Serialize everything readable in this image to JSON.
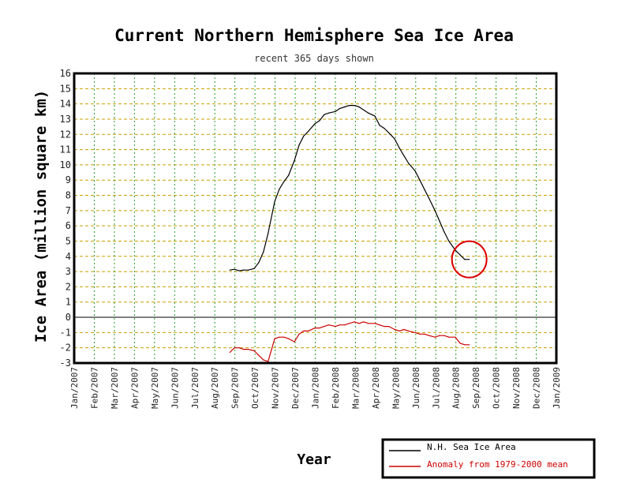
{
  "chart_data": {
    "type": "line",
    "title": "Current Northern Hemisphere Sea Ice Area",
    "subtitle": "recent 365 days shown",
    "ylabel": "Ice Area (million square km)",
    "xlabel": "Year",
    "ylim": [
      -3,
      16
    ],
    "yticks": [
      -3,
      -2,
      -1,
      0,
      1,
      2,
      3,
      4,
      5,
      6,
      7,
      8,
      9,
      10,
      11,
      12,
      13,
      14,
      15,
      16
    ],
    "xticks": [
      "Jan/2007",
      "Feb/2007",
      "Mar/2007",
      "Apr/2007",
      "May/2007",
      "Jun/2007",
      "Jul/2007",
      "Aug/2007",
      "Sep/2007",
      "Oct/2007",
      "Nov/2007",
      "Dec/2007",
      "Jan/2008",
      "Feb/2008",
      "Mar/2008",
      "Apr/2008",
      "May/2008",
      "Jun/2008",
      "Jul/2008",
      "Aug/2008",
      "Sep/2008",
      "Oct/2008",
      "Nov/2008",
      "Dec/2008",
      "Jan/2009"
    ],
    "xlim": [
      "2007-01-01",
      "2009-01-01"
    ],
    "grid": true,
    "legend_position": "bottom-right",
    "series": [
      {
        "name": "N.H. Sea Ice Area",
        "color": "#000000",
        "x": [
          "2007-08-25",
          "2007-09-01",
          "2007-09-08",
          "2007-09-15",
          "2007-09-22",
          "2007-10-01",
          "2007-10-08",
          "2007-10-15",
          "2007-10-22",
          "2007-11-01",
          "2007-11-08",
          "2007-11-15",
          "2007-11-22",
          "2007-12-01",
          "2007-12-08",
          "2007-12-15",
          "2007-12-22",
          "2008-01-01",
          "2008-01-08",
          "2008-01-15",
          "2008-01-22",
          "2008-02-01",
          "2008-02-08",
          "2008-02-15",
          "2008-02-22",
          "2008-03-01",
          "2008-03-08",
          "2008-03-15",
          "2008-03-22",
          "2008-04-01",
          "2008-04-08",
          "2008-04-15",
          "2008-04-22",
          "2008-05-01",
          "2008-05-08",
          "2008-05-15",
          "2008-05-22",
          "2008-06-01",
          "2008-06-08",
          "2008-06-15",
          "2008-06-22",
          "2008-07-01",
          "2008-07-08",
          "2008-07-15",
          "2008-07-22",
          "2008-08-01",
          "2008-08-08",
          "2008-08-15",
          "2008-08-22"
        ],
        "values": [
          3.1,
          3.15,
          3.05,
          3.1,
          3.1,
          3.2,
          3.6,
          4.3,
          5.5,
          7.6,
          8.4,
          8.9,
          9.3,
          10.3,
          11.3,
          11.9,
          12.2,
          12.7,
          12.9,
          13.3,
          13.4,
          13.5,
          13.7,
          13.8,
          13.9,
          13.9,
          13.8,
          13.6,
          13.4,
          13.2,
          12.6,
          12.4,
          12.1,
          11.7,
          11.1,
          10.6,
          10.1,
          9.6,
          9.0,
          8.4,
          7.8,
          7.0,
          6.3,
          5.6,
          5.0,
          4.4,
          4.1,
          3.8,
          3.8
        ]
      },
      {
        "name": "Anomaly from 1979-2000 mean",
        "color": "#cc0000",
        "x": [
          "2007-08-25",
          "2007-09-01",
          "2007-09-08",
          "2007-09-15",
          "2007-09-22",
          "2007-10-01",
          "2007-10-08",
          "2007-10-15",
          "2007-10-22",
          "2007-11-01",
          "2007-11-08",
          "2007-11-15",
          "2007-11-22",
          "2007-12-01",
          "2007-12-08",
          "2007-12-15",
          "2007-12-22",
          "2008-01-01",
          "2008-01-08",
          "2008-01-15",
          "2008-01-22",
          "2008-02-01",
          "2008-02-08",
          "2008-02-15",
          "2008-02-22",
          "2008-03-01",
          "2008-03-08",
          "2008-03-15",
          "2008-03-22",
          "2008-04-01",
          "2008-04-08",
          "2008-04-15",
          "2008-04-22",
          "2008-05-01",
          "2008-05-08",
          "2008-05-15",
          "2008-05-22",
          "2008-06-01",
          "2008-06-08",
          "2008-06-15",
          "2008-06-22",
          "2008-07-01",
          "2008-07-08",
          "2008-07-15",
          "2008-07-22",
          "2008-08-01",
          "2008-08-08",
          "2008-08-15",
          "2008-08-22"
        ],
        "values": [
          -2.3,
          -2.0,
          -2.0,
          -2.1,
          -2.1,
          -2.2,
          -2.5,
          -2.8,
          -2.9,
          -1.4,
          -1.3,
          -1.3,
          -1.4,
          -1.6,
          -1.1,
          -0.9,
          -0.9,
          -0.7,
          -0.7,
          -0.6,
          -0.5,
          -0.6,
          -0.5,
          -0.5,
          -0.4,
          -0.3,
          -0.4,
          -0.3,
          -0.4,
          -0.4,
          -0.5,
          -0.6,
          -0.6,
          -0.8,
          -0.9,
          -0.8,
          -0.9,
          -1.0,
          -1.1,
          -1.1,
          -1.2,
          -1.3,
          -1.2,
          -1.2,
          -1.3,
          -1.3,
          -1.7,
          -1.8,
          -1.8
        ]
      }
    ]
  },
  "annotation": {
    "type": "circle",
    "color": "#dd0000",
    "center_date": "2008-08-22",
    "center_value": 3.8
  }
}
